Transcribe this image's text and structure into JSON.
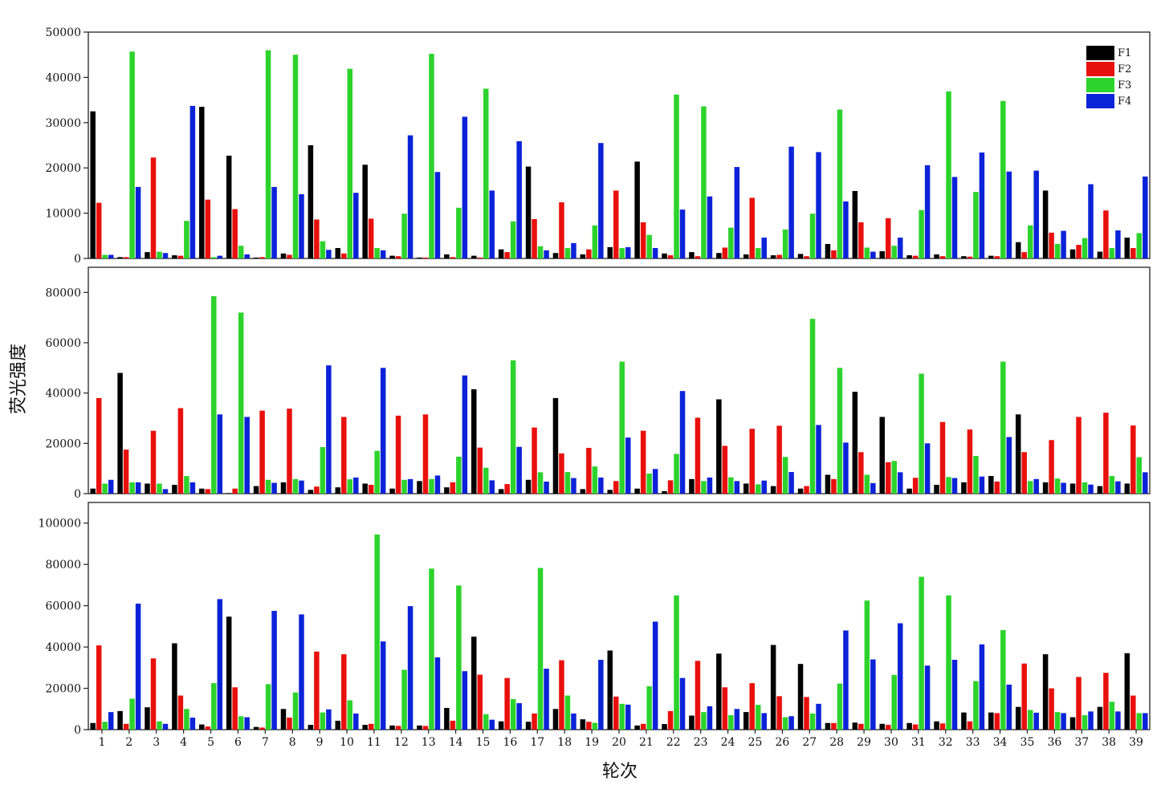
{
  "chart_data": {
    "type": "bar",
    "xlabel": "轮次",
    "ylabel": "荧光强度",
    "categories": [
      "1",
      "2",
      "3",
      "4",
      "5",
      "6",
      "7",
      "8",
      "9",
      "10",
      "11",
      "12",
      "13",
      "14",
      "15",
      "16",
      "17",
      "18",
      "19",
      "20",
      "21",
      "22",
      "23",
      "24",
      "25",
      "26",
      "27",
      "28",
      "29",
      "30",
      "31",
      "32",
      "33",
      "34",
      "35",
      "36",
      "37",
      "38",
      "39"
    ],
    "colors": {
      "F1": "#000000",
      "F2": "#e8100c",
      "F3": "#2cd32c",
      "F4": "#0b23d8"
    },
    "legend": {
      "position": "top-right",
      "entries": [
        "F1",
        "F2",
        "F3",
        "F4"
      ]
    },
    "panels": [
      {
        "ylim": [
          0,
          50000
        ],
        "yticks": [
          "0",
          "10000",
          "20000",
          "30000",
          "40000",
          "50000"
        ],
        "series": [
          {
            "name": "F1",
            "values": [
              32500,
              300,
              1400,
              700,
              33500,
              22700,
              200,
              1100,
              25000,
              2300,
              20700,
              600,
              200,
              900,
              600,
              2000,
              20300,
              1200,
              900,
              2500,
              21400,
              1100,
              1400,
              1200,
              900,
              700,
              1000,
              3200,
              14900,
              1600,
              700,
              900,
              500,
              600,
              3600,
              15000,
              2000,
              1500,
              4600
            ]
          },
          {
            "name": "F2",
            "values": [
              12300,
              300,
              22300,
              600,
              13000,
              10900,
              300,
              800,
              8600,
              1100,
              8800,
              500,
              200,
              300,
              200,
              1400,
              8700,
              12400,
              2000,
              15000,
              8000,
              700,
              500,
              2400,
              13400,
              800,
              500,
              1800,
              8000,
              8900,
              600,
              500,
              400,
              500,
              1400,
              5700,
              3000,
              10600,
              2300
            ]
          },
          {
            "name": "F3",
            "values": [
              800,
              45700,
              1500,
              8300,
              300,
              2800,
              46000,
              45000,
              3800,
              41900,
              2300,
              9900,
              45200,
              11200,
              37500,
              8200,
              2700,
              2300,
              7300,
              2300,
              5200,
              36200,
              33600,
              6800,
              2300,
              6400,
              9900,
              32900,
              2400,
              2800,
              10700,
              36900,
              14700,
              34800,
              7300,
              3200,
              4500,
              2300,
              5600
            ]
          },
          {
            "name": "F4",
            "values": [
              800,
              15800,
              1200,
              33700,
              600,
              900,
              15800,
              14200,
              1900,
              14500,
              1800,
              27200,
              19100,
              31300,
              15000,
              25900,
              1800,
              3400,
              25500,
              2500,
              2300,
              10800,
              13700,
              20200,
              4600,
              24700,
              23500,
              12600,
              1500,
              4600,
              20600,
              18000,
              23400,
              19200,
              19400,
              6100,
              16400,
              6200,
              18100
            ]
          }
        ]
      },
      {
        "ylim": [
          0,
          90000
        ],
        "yticks": [
          "0",
          "20000",
          "40000",
          "60000",
          "80000"
        ],
        "series": [
          {
            "name": "F1",
            "values": [
              2000,
              48000,
              4000,
              3500,
              2000,
              200,
              3000,
              4500,
              1500,
              2500,
              4000,
              2000,
              5000,
              2500,
              41500,
              1800,
              5500,
              38000,
              1800,
              1500,
              2000,
              1000,
              5800,
              37500,
              4000,
              3000,
              2000,
              7500,
              40500,
              30500,
              2000,
              3500,
              4500,
              7000,
              31500,
              4500,
              4000,
              3000,
              4000
            ]
          },
          {
            "name": "F2",
            "values": [
              38000,
              17500,
              25000,
              34000,
              1800,
              2000,
              33000,
              33800,
              2800,
              30500,
              3500,
              31000,
              31500,
              4500,
              18300,
              3800,
              26300,
              16000,
              18200,
              5000,
              25000,
              5300,
              30200,
              19000,
              25800,
              27000,
              3000,
              5800,
              16500,
              12500,
              6300,
              28500,
              25500,
              4800,
              16500,
              21300,
              30500,
              32200,
              27100
            ]
          },
          {
            "name": "F3",
            "values": [
              4000,
              4500,
              4000,
              7000,
              78500,
              72000,
              5500,
              5800,
              18500,
              5700,
              17000,
              5500,
              5800,
              14700,
              10300,
              53000,
              8500,
              8600,
              10800,
              52500,
              8000,
              15800,
              5000,
              6500,
              3700,
              14600,
              69500,
              50000,
              7500,
              13000,
              47700,
              6600,
              15000,
              52500,
              5000,
              6000,
              4500,
              7000,
              14500
            ]
          },
          {
            "name": "F4",
            "values": [
              5500,
              4500,
              1800,
              4500,
              31500,
              30500,
              4300,
              5200,
              51000,
              6400,
              50000,
              5800,
              7200,
              47000,
              5300,
              18600,
              4800,
              6200,
              6400,
              22300,
              9800,
              40800,
              6400,
              5000,
              5200,
              8600,
              27300,
              20300,
              4200,
              8500,
              20000,
              6200,
              6800,
              22500,
              5800,
              4300,
              3600,
              4900,
              8500
            ]
          }
        ]
      },
      {
        "ylim": [
          0,
          110000
        ],
        "yticks": [
          "0",
          "20000",
          "40000",
          "60000",
          "80000",
          "100000"
        ],
        "series": [
          {
            "name": "F1",
            "values": [
              3200,
              9000,
              10800,
              41800,
              2500,
              54700,
              1300,
              10000,
              2300,
              4300,
              2300,
              2000,
              2000,
              10500,
              45000,
              4000,
              3800,
              10000,
              5000,
              38300,
              2000,
              2700,
              6800,
              36800,
              8500,
              41000,
              31800,
              3200,
              3400,
              2800,
              3200,
              4000,
              8300,
              8300,
              11000,
              36500,
              6000,
              11000,
              37000
            ]
          },
          {
            "name": "F2",
            "values": [
              40800,
              2800,
              34500,
              16500,
              1500,
              20500,
              1000,
              5800,
              37800,
              36500,
              2800,
              1800,
              1800,
              4300,
              26600,
              25000,
              7800,
              33600,
              3800,
              16000,
              2800,
              9000,
              33300,
              20500,
              22500,
              16200,
              15800,
              3200,
              2800,
              2300,
              2500,
              3000,
              4000,
              8000,
              32000,
              20000,
              25500,
              27500,
              16500
            ]
          },
          {
            "name": "F3",
            "values": [
              3800,
              15000,
              4000,
              10000,
              22500,
              6500,
              22000,
              18000,
              8300,
              14200,
              94500,
              29000,
              78000,
              69800,
              7500,
              14800,
              78300,
              16500,
              3300,
              12500,
              21000,
              65000,
              8500,
              7000,
              12000,
              6000,
              7800,
              22300,
              62500,
              26500,
              74000,
              65000,
              23500,
              48200,
              9500,
              8500,
              7000,
              13500,
              8000
            ]
          },
          {
            "name": "F4",
            "values": [
              8500,
              61000,
              2800,
              5800,
              63200,
              6000,
              57500,
              55800,
              9800,
              7800,
              42700,
              59800,
              35000,
              28300,
              4800,
              12800,
              29500,
              7800,
              33800,
              12100,
              52300,
              25000,
              11300,
              10000,
              8000,
              6500,
              12500,
              48000,
              34000,
              51500,
              31000,
              33800,
              41300,
              21800,
              8200,
              8000,
              8800,
              8800,
              8000
            ]
          }
        ]
      }
    ]
  }
}
